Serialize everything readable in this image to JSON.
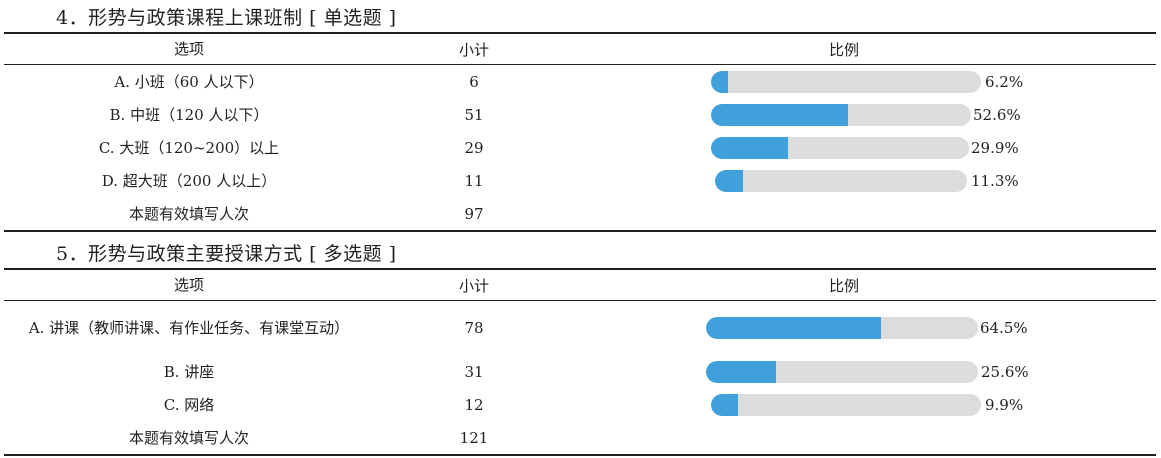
{
  "q4": {
    "title": "4．形势与政策课程上课班制 [ 单选题 ]",
    "headers": {
      "option": "选项",
      "count": "小计",
      "ratio": "比例"
    },
    "rows": [
      {
        "option": "A. 小班（60 人以下）",
        "count": "6",
        "pct": "6.2%",
        "value": 0.062
      },
      {
        "option": "B. 中班（120 人以下）",
        "count": "51",
        "pct": "52.6%",
        "value": 0.526
      },
      {
        "option": "C. 大班（120~200）以上",
        "count": "29",
        "pct": "29.9%",
        "value": 0.299
      },
      {
        "option": "D. 超大班（200 人以上）",
        "count": "11",
        "pct": "11.3%",
        "value": 0.113
      }
    ],
    "total": {
      "label": "本题有效填写人次",
      "count": "97"
    }
  },
  "q5": {
    "title": "5．形势与政策主要授课方式 [ 多选题 ]",
    "headers": {
      "option": "选项",
      "count": "小计",
      "ratio": "比例"
    },
    "rows": [
      {
        "option": "A. 讲课（教师讲课、有作业任务、有课堂互动）",
        "count": "78",
        "pct": "64.5%",
        "value": 0.645
      },
      {
        "option": "B. 讲座",
        "count": "31",
        "pct": "25.6%",
        "value": 0.256
      },
      {
        "option": "C. 网络",
        "count": "12",
        "pct": "9.9%",
        "value": 0.099
      }
    ],
    "total": {
      "label": "本题有效填写人次",
      "count": "121"
    }
  },
  "colors": {
    "bar_fill": "#3fa0dc",
    "bar_track": "#dcdcdc"
  }
}
